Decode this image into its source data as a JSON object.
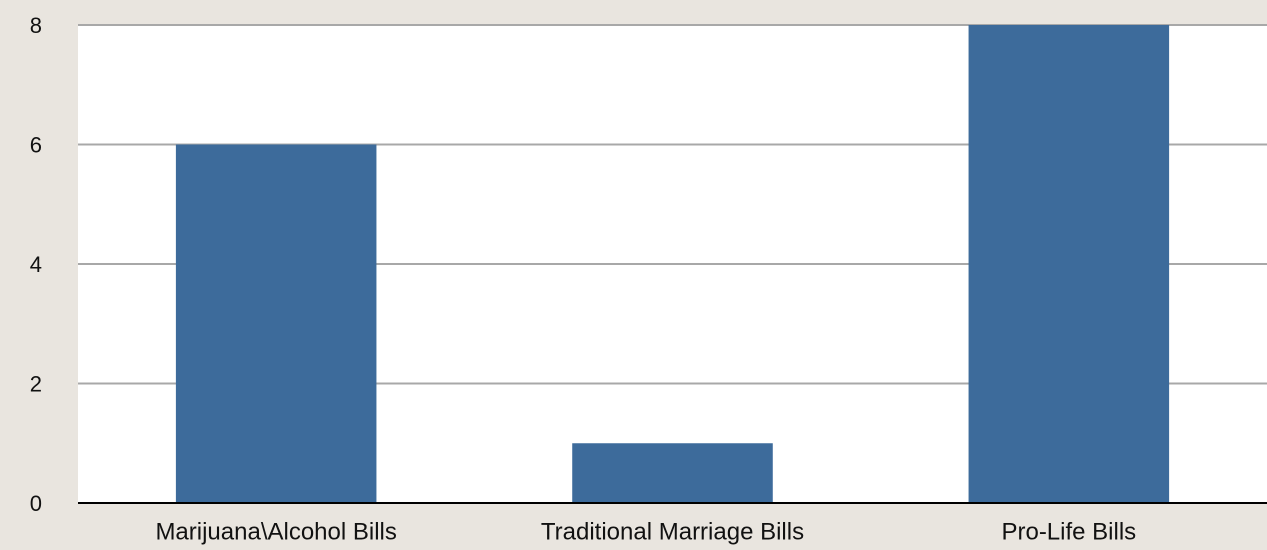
{
  "chart_data": {
    "type": "bar",
    "categories": [
      "Marijuana\\Alcohol Bills",
      "Traditional Marriage Bills",
      "Pro-Life Bills"
    ],
    "values": [
      6,
      1,
      8
    ],
    "color": "#3d6b9b",
    "ylim": [
      0,
      8
    ],
    "yticks": [
      0,
      2,
      4,
      6,
      8
    ],
    "grid": true
  }
}
